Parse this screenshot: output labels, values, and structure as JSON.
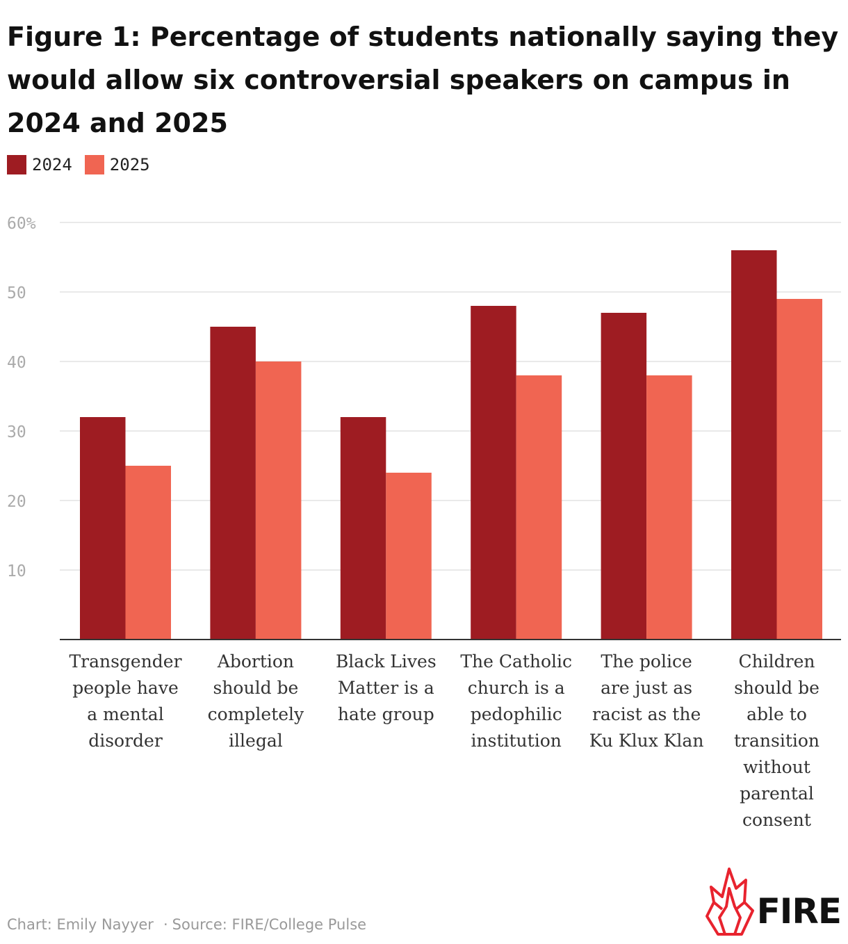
{
  "chart_data": {
    "type": "bar",
    "title": "Figure 1: Percentage of students nationally saying they would allow six controversial speakers on campus in 2024 and 2025",
    "xlabel": "",
    "ylabel": "",
    "ylim": [
      0,
      60
    ],
    "yticks": [
      {
        "value": 60,
        "label": "60%"
      },
      {
        "value": 50,
        "label": "50"
      },
      {
        "value": 40,
        "label": "40"
      },
      {
        "value": 30,
        "label": "30"
      },
      {
        "value": 20,
        "label": "20"
      },
      {
        "value": 10,
        "label": "10"
      }
    ],
    "grid": true,
    "legend_position": "top-left",
    "categories": [
      [
        "Transgender",
        "people have",
        "a mental",
        "disorder"
      ],
      [
        "Abortion",
        "should be",
        "completely",
        "illegal"
      ],
      [
        "Black Lives",
        "Matter is a",
        "hate group"
      ],
      [
        "The Catholic",
        "church is a",
        "pedophilic",
        "institution"
      ],
      [
        "The police",
        "are just as",
        "racist as the",
        "Ku Klux Klan"
      ],
      [
        "Children",
        "should be",
        "able to",
        "transition",
        "without",
        "parental",
        "consent"
      ]
    ],
    "series": [
      {
        "name": "2024",
        "color": "#9e1c22",
        "values": [
          32,
          45,
          32,
          48,
          47,
          56
        ]
      },
      {
        "name": "2025",
        "color": "#f06552",
        "values": [
          25,
          40,
          24,
          38,
          38,
          49
        ]
      }
    ]
  },
  "footer": {
    "credit": "Chart: Emily Nayyer",
    "separator": "·",
    "source": "Source: FIRE/College Pulse"
  },
  "logo": {
    "text": "FIRE",
    "flame_color": "#e8232e"
  },
  "colors": {
    "gridline": "#e2e2e2",
    "axis": "#333333",
    "tick_label": "#aaaaaa",
    "category_label": "#333333"
  }
}
